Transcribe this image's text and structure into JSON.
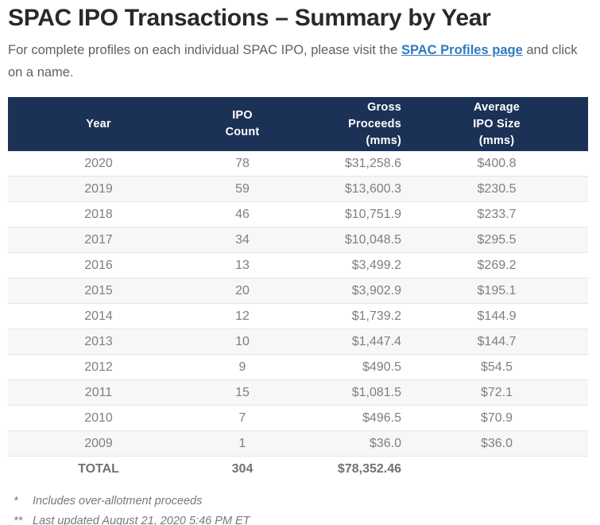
{
  "page": {
    "title": "SPAC IPO Transactions – Summary by Year",
    "intro": {
      "prefix": "For complete profiles on each individual SPAC IPO, please visit the ",
      "link_label": "SPAC Profiles page",
      "suffix": " and click on a name."
    }
  },
  "table": {
    "columns": [
      {
        "id": "year",
        "label": "Year"
      },
      {
        "id": "ipo_count",
        "label": "IPO\nCount"
      },
      {
        "id": "gross_proceeds",
        "label": "Gross\nProceeds\n(mms)"
      },
      {
        "id": "avg_ipo_size",
        "label": "Average\nIPO Size\n(mms)"
      }
    ],
    "rows": [
      {
        "year": "2020",
        "ipo_count": "78",
        "gross_proceeds": "$31,258.6",
        "avg_ipo_size": "$400.8"
      },
      {
        "year": "2019",
        "ipo_count": "59",
        "gross_proceeds": "$13,600.3",
        "avg_ipo_size": "$230.5"
      },
      {
        "year": "2018",
        "ipo_count": "46",
        "gross_proceeds": "$10,751.9",
        "avg_ipo_size": "$233.7"
      },
      {
        "year": "2017",
        "ipo_count": "34",
        "gross_proceeds": "$10,048.5",
        "avg_ipo_size": "$295.5"
      },
      {
        "year": "2016",
        "ipo_count": "13",
        "gross_proceeds": "$3,499.2",
        "avg_ipo_size": "$269.2"
      },
      {
        "year": "2015",
        "ipo_count": "20",
        "gross_proceeds": "$3,902.9",
        "avg_ipo_size": "$195.1"
      },
      {
        "year": "2014",
        "ipo_count": "12",
        "gross_proceeds": "$1,739.2",
        "avg_ipo_size": "$144.9"
      },
      {
        "year": "2013",
        "ipo_count": "10",
        "gross_proceeds": "$1,447.4",
        "avg_ipo_size": "$144.7"
      },
      {
        "year": "2012",
        "ipo_count": "9",
        "gross_proceeds": "$490.5",
        "avg_ipo_size": "$54.5"
      },
      {
        "year": "2011",
        "ipo_count": "15",
        "gross_proceeds": "$1,081.5",
        "avg_ipo_size": "$72.1"
      },
      {
        "year": "2010",
        "ipo_count": "7",
        "gross_proceeds": "$496.5",
        "avg_ipo_size": "$70.9"
      },
      {
        "year": "2009",
        "ipo_count": "1",
        "gross_proceeds": "$36.0",
        "avg_ipo_size": "$36.0"
      }
    ],
    "total_row": {
      "year": "TOTAL",
      "ipo_count": "304",
      "gross_proceeds": "$78,352.46",
      "avg_ipo_size": ""
    }
  },
  "footnotes": [
    {
      "marker": "*",
      "text": "Includes over-allotment proceeds"
    },
    {
      "marker": "**",
      "text": "Last updated August 21, 2020 5:46 PM ET"
    }
  ],
  "colors": {
    "header_bg": "#1c3156",
    "title_text": "#28292d",
    "body_text": "#5d6266",
    "link": "#2e7bbe",
    "cell_text": "#7b8084",
    "total_text": "#6d7377",
    "stripe": "#f7f7f8",
    "row_border": "#e3e5e7",
    "footnote_text": "#747a7d"
  }
}
